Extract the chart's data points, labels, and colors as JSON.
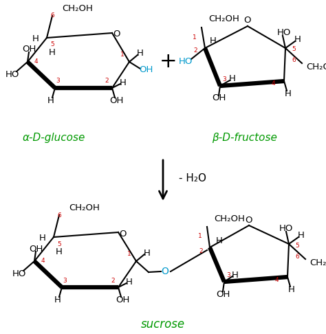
{
  "background": "#ffffff",
  "black": "#000000",
  "red": "#cc0000",
  "green": "#009900",
  "cyan": "#0099cc",
  "glucose_label": "α-D-glucose",
  "fructose_label": "β-D-fructose",
  "sucrose_label": "sucrose"
}
